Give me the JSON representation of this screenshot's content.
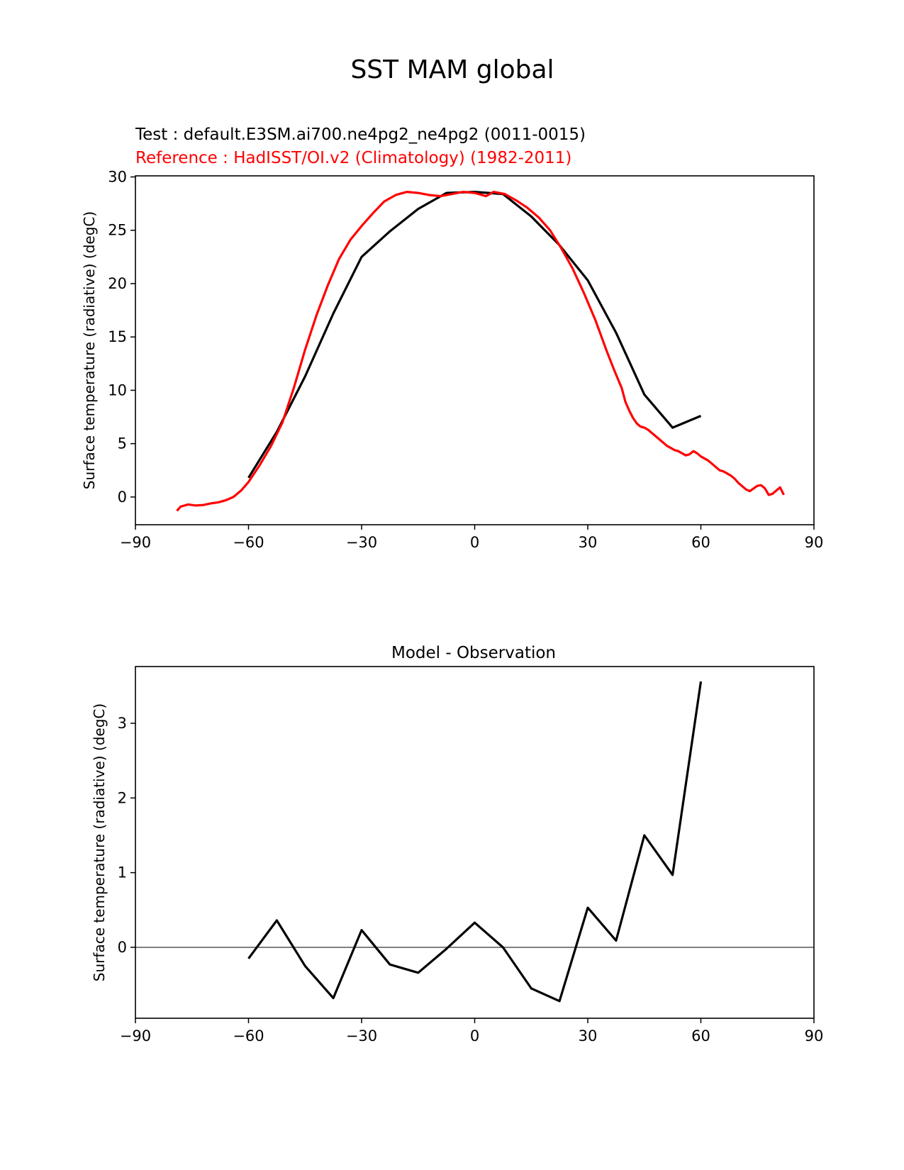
{
  "figure_title": "SST MAM global",
  "chart_data": [
    {
      "type": "line",
      "title": "",
      "legend_lines": [
        {
          "text": "Test : default.E3SM.ai700.ne4pg2_ne4pg2 (0011-0015)",
          "color": "#000000"
        },
        {
          "text": "Reference : HadISST/OI.v2 (Climatology) (1982-2011)",
          "color": "#ff0000"
        }
      ],
      "xlabel": "",
      "ylabel": "Surface temperature (radiative) (degC)",
      "xlim": [
        -90,
        90
      ],
      "ylim": [
        -2.6,
        30.1
      ],
      "xticks": [
        -90,
        -60,
        -30,
        0,
        30,
        60,
        90
      ],
      "xtick_labels": [
        "−90",
        "−60",
        "−30",
        "0",
        "30",
        "60",
        "90"
      ],
      "yticks": [
        0,
        5,
        10,
        15,
        20,
        25,
        30
      ],
      "ytick_labels": [
        "0",
        "5",
        "10",
        "15",
        "20",
        "25",
        "30"
      ],
      "series": [
        {
          "color": "#000000",
          "x": [
            -60,
            -52.5,
            -45,
            -37.5,
            -30,
            -22.5,
            -15,
            -7.5,
            0,
            7.5,
            15,
            22.5,
            30,
            37.5,
            45,
            52.5,
            60
          ],
          "y": [
            1.8,
            6.1,
            11.3,
            17.2,
            22.5,
            24.9,
            27.0,
            28.5,
            28.6,
            28.4,
            26.3,
            23.6,
            20.3,
            15.4,
            9.6,
            6.5,
            7.6
          ]
        },
        {
          "color": "#ff0000",
          "x": [
            -79,
            -78,
            -76,
            -74,
            -72,
            -70,
            -68,
            -66,
            -64,
            -62,
            -60,
            -57,
            -54,
            -51,
            -48,
            -45,
            -42,
            -39,
            -36,
            -33,
            -30,
            -27,
            -24,
            -21,
            -18,
            -15,
            -12,
            -9,
            -6,
            -3,
            0,
            3,
            5,
            8,
            11,
            14,
            17,
            20,
            23,
            26,
            29,
            32,
            35,
            37,
            39,
            40,
            41,
            42,
            43,
            44,
            45,
            46,
            47,
            48,
            49,
            50,
            51,
            52,
            53,
            54,
            55,
            56,
            57,
            58,
            59,
            60,
            61,
            62,
            63,
            64,
            65,
            66,
            67,
            68,
            69,
            70,
            71,
            72,
            73,
            74,
            75,
            76,
            77,
            78,
            79,
            80,
            81,
            82
          ],
          "y": [
            -1.3,
            -0.9,
            -0.7,
            -0.8,
            -0.75,
            -0.6,
            -0.5,
            -0.3,
            0.0,
            0.6,
            1.4,
            3.0,
            4.8,
            7.0,
            10.2,
            13.8,
            17.0,
            19.8,
            22.3,
            24.1,
            25.4,
            26.6,
            27.7,
            28.3,
            28.6,
            28.5,
            28.3,
            28.2,
            28.4,
            28.6,
            28.5,
            28.2,
            28.6,
            28.4,
            27.8,
            27.1,
            26.2,
            25.0,
            23.3,
            21.4,
            19.1,
            16.6,
            13.7,
            11.9,
            10.2,
            8.9,
            8.1,
            7.4,
            6.9,
            6.6,
            6.5,
            6.3,
            6.0,
            5.7,
            5.4,
            5.1,
            4.8,
            4.6,
            4.4,
            4.3,
            4.1,
            3.9,
            4.0,
            4.3,
            4.1,
            3.8,
            3.6,
            3.4,
            3.1,
            2.8,
            2.5,
            2.4,
            2.2,
            2.0,
            1.7,
            1.3,
            1.0,
            0.7,
            0.55,
            0.8,
            1.05,
            1.1,
            0.8,
            0.2,
            0.3,
            0.6,
            0.9,
            0.2
          ]
        }
      ],
      "grid": false
    },
    {
      "type": "line",
      "title": "Model - Observation",
      "xlabel": "",
      "ylabel": "Surface temperature (radiative) (degC)",
      "xlim": [
        -90,
        90
      ],
      "ylim": [
        -0.95,
        3.76
      ],
      "xticks": [
        -90,
        -60,
        -30,
        0,
        30,
        60,
        90
      ],
      "xtick_labels": [
        "−90",
        "−60",
        "−30",
        "0",
        "30",
        "60",
        "90"
      ],
      "yticks": [
        0,
        1,
        2,
        3
      ],
      "ytick_labels": [
        "0",
        "1",
        "2",
        "3"
      ],
      "series": [
        {
          "color": "#000000",
          "x": [
            -60,
            -52.5,
            -45,
            -37.5,
            -30,
            -22.5,
            -15,
            -7.5,
            0,
            7.5,
            15,
            22.5,
            30,
            37.5,
            45,
            52.5,
            60
          ],
          "y": [
            -0.15,
            0.36,
            -0.25,
            -0.68,
            0.23,
            -0.23,
            -0.34,
            -0.02,
            0.33,
            0.0,
            -0.55,
            -0.72,
            0.53,
            0.09,
            1.5,
            0.97,
            3.56
          ]
        }
      ],
      "zero_line": {
        "y": 0,
        "color": "#808080"
      },
      "grid": false
    }
  ]
}
